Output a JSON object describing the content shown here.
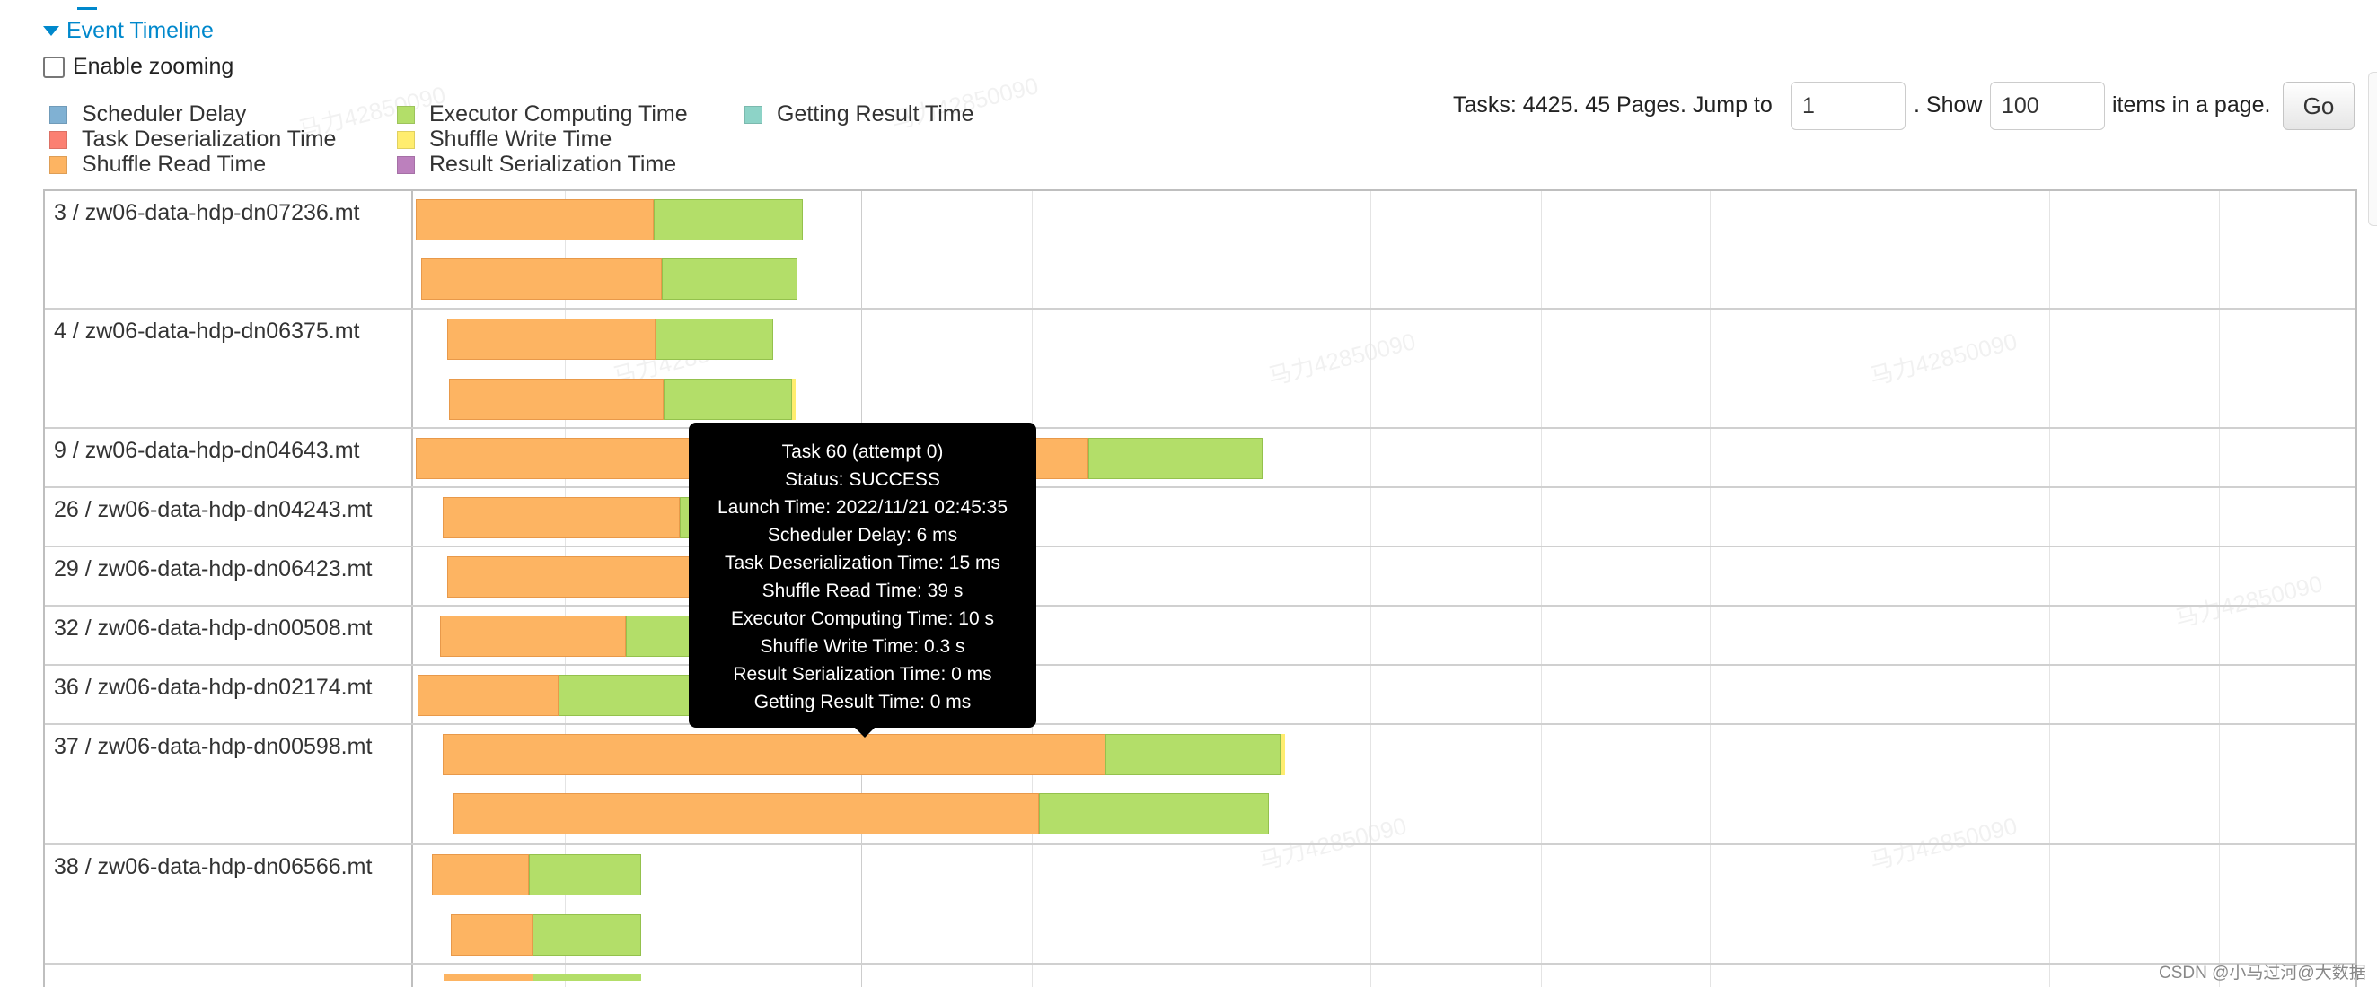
{
  "header": {
    "section_title": "Event Timeline",
    "enable_zooming_label": "Enable zooming"
  },
  "legend": [
    {
      "label": "Scheduler Delay",
      "color": "#80b1d3"
    },
    {
      "label": "Task Deserialization Time",
      "color": "#fb8072"
    },
    {
      "label": "Shuffle Read Time",
      "color": "#fdb462"
    },
    {
      "label": "Executor Computing Time",
      "color": "#b3de69"
    },
    {
      "label": "Shuffle Write Time",
      "color": "#ffed6f"
    },
    {
      "label": "Result Serialization Time",
      "color": "#bc80bd"
    },
    {
      "label": "Getting Result Time",
      "color": "#8dd3c7"
    }
  ],
  "pager": {
    "tasks_text": "Tasks: 4425. 45 Pages. Jump to",
    "jump_value": "1",
    "show_text": ". Show",
    "page_size_value": "100",
    "items_text": "items in a page.",
    "go_label": "Go"
  },
  "timeline": {
    "rows": [
      {
        "label": "3 / zw06-data-hdp-dn07236.mt"
      },
      {
        "label": "4 / zw06-data-hdp-dn06375.mt"
      },
      {
        "label": "9 / zw06-data-hdp-dn04643.mt"
      },
      {
        "label": "26 / zw06-data-hdp-dn04243.mt"
      },
      {
        "label": "29 / zw06-data-hdp-dn06423.mt"
      },
      {
        "label": "32 / zw06-data-hdp-dn00508.mt"
      },
      {
        "label": "36 / zw06-data-hdp-dn02174.mt"
      },
      {
        "label": "37 / zw06-data-hdp-dn00598.mt"
      },
      {
        "label": "38 / zw06-data-hdp-dn06566.mt"
      }
    ]
  },
  "tooltip": {
    "title": "Task 60 (attempt 0)",
    "status": "Status: SUCCESS",
    "launch_time": "Launch Time: 2022/11/21 02:45:35",
    "scheduler_delay": "Scheduler Delay: 6 ms",
    "task_deserialization": "Task Deserialization Time: 15 ms",
    "shuffle_read": "Shuffle Read Time: 39 s",
    "executor_computing": "Executor Computing Time: 10 s",
    "shuffle_write": "Shuffle Write Time: 0.3 s",
    "result_serialization": "Result Serialization Time: 0 ms",
    "getting_result": "Getting Result Time: 0 ms"
  },
  "footer": {
    "credit": "CSDN @小马过河@大数据"
  }
}
